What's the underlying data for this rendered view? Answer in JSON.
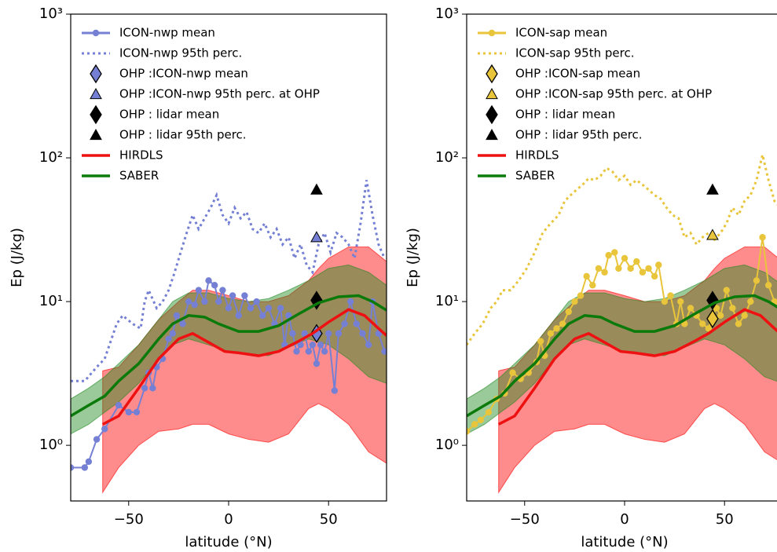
{
  "chart_data": [
    {
      "type": "line",
      "xlabel": "latitude (°N)",
      "ylabel": "Ep (J/kg)",
      "yscale": "log",
      "legend": "upper left",
      "xlim": [
        -79,
        79
      ],
      "ylim": [
        0.41,
        1000
      ],
      "xticks": [
        {
          "value": -50,
          "label": "−50"
        },
        0,
        50
      ],
      "yticks": [
        {
          "value": 1,
          "label": "10⁰"
        },
        {
          "value": 10,
          "label": "10¹"
        },
        {
          "value": 100,
          "label": "10²"
        },
        {
          "value": 1000,
          "label": "10³"
        }
      ],
      "bands": [
        {
          "color": "#ff0000",
          "x": [
            -63,
            -55,
            -45,
            -35,
            -25,
            -18,
            -10,
            0,
            10,
            20,
            30,
            40,
            45,
            50,
            60,
            70,
            79
          ],
          "lower": [
            0.47,
            0.7,
            1,
            1.25,
            1.3,
            1.4,
            1.4,
            1.2,
            1.1,
            1.05,
            1.2,
            1.8,
            1.95,
            1.8,
            1.4,
            0.9,
            0.75
          ],
          "upper": [
            3.3,
            3.5,
            5,
            7.5,
            10,
            12,
            12,
            11,
            10,
            10,
            11,
            14,
            17,
            20,
            24,
            24,
            19
          ]
        },
        {
          "color": "#1f8a1f",
          "x": [
            -79,
            -70,
            -62,
            -55,
            -45,
            -35,
            -28,
            -20,
            -10,
            0,
            10,
            20,
            30,
            40,
            50,
            60,
            70,
            79
          ],
          "lower": [
            1.2,
            1.4,
            1.7,
            2,
            2.7,
            4,
            5,
            5.5,
            5,
            4.5,
            4.3,
            4.2,
            4.8,
            5.5,
            5,
            4,
            3,
            2.7
          ],
          "upper": [
            2.1,
            2.5,
            3,
            3.7,
            5,
            7.5,
            10,
            11.5,
            11.5,
            10.5,
            10,
            10.5,
            12,
            14,
            17,
            18,
            16,
            13
          ]
        }
      ],
      "series": [
        {
          "name": "ICON-nwp mean",
          "color": "#7580d4",
          "style": "solid-markers",
          "x": [
            -79,
            -72,
            -70,
            -66,
            -62,
            -55,
            -50,
            -46,
            -42,
            -40,
            -38,
            -36,
            -33,
            -30,
            -28,
            -26,
            -23,
            -20,
            -17,
            -15,
            -12,
            -10,
            -7,
            -5,
            -3,
            0,
            2,
            5,
            8,
            11,
            14,
            17,
            20,
            23,
            26,
            28,
            30,
            32,
            34,
            36,
            38,
            40,
            42,
            44,
            46,
            48,
            50,
            53,
            55,
            58,
            61,
            64,
            67,
            70,
            72,
            75,
            78
          ],
          "values": [
            0.7,
            0.7,
            0.77,
            1.1,
            1.3,
            1.9,
            1.7,
            1.7,
            2.5,
            3.2,
            2.5,
            3.5,
            4,
            5.5,
            6,
            8,
            7,
            10,
            9.5,
            12,
            10,
            14,
            13,
            10,
            12,
            9,
            11,
            8,
            11,
            9,
            10,
            8,
            9,
            7,
            9,
            5,
            8,
            6,
            4.5,
            5,
            6,
            4.5,
            5,
            3.7,
            5,
            4.5,
            6,
            2.4,
            6,
            7,
            10,
            7,
            6,
            5,
            10,
            6,
            4.5
          ]
        },
        {
          "name": "ICON-nwp 95th perc.",
          "color": "#7580d4",
          "style": "dotted",
          "x": [
            -79,
            -72,
            -66,
            -62,
            -56,
            -53,
            -48,
            -44,
            -42,
            -40,
            -36,
            -33,
            -30,
            -27,
            -24,
            -21,
            -18,
            -15,
            -12,
            -9,
            -6,
            -3,
            0,
            3,
            6,
            9,
            12,
            15,
            18,
            21,
            24,
            27,
            30,
            33,
            36,
            39,
            42,
            45,
            48,
            51,
            54,
            57,
            60,
            63,
            66,
            69,
            72,
            75,
            78
          ],
          "values": [
            2.8,
            2.8,
            3.5,
            4,
            7,
            8,
            7,
            6.5,
            10,
            12,
            9,
            10,
            12,
            16,
            22,
            30,
            40,
            32,
            38,
            45,
            55,
            40,
            35,
            45,
            38,
            42,
            32,
            30,
            35,
            28,
            32,
            25,
            28,
            20,
            25,
            18,
            16,
            25,
            30,
            22,
            30,
            28,
            25,
            20,
            35,
            70,
            40,
            25,
            20
          ]
        },
        {
          "name": "OHP :ICON-nwp mean",
          "color": "#7580d4",
          "style": "diamond",
          "x": [
            44
          ],
          "values": [
            6
          ]
        },
        {
          "name": "OHP :ICON-nwp 95th perc. at OHP",
          "color": "#7580d4",
          "style": "triangle",
          "x": [
            44
          ],
          "values": [
            28
          ]
        },
        {
          "name": "OHP : lidar mean",
          "color": "#000000",
          "style": "diamond",
          "x": [
            44
          ],
          "values": [
            10.2
          ]
        },
        {
          "name": "OHP : lidar 95th perc.",
          "color": "#000000",
          "style": "triangle",
          "x": [
            44
          ],
          "values": [
            60
          ]
        },
        {
          "name": "HIRDLS",
          "color": "#ee1111",
          "style": "solid",
          "x": [
            -63,
            -55,
            -45,
            -35,
            -25,
            -18,
            -10,
            -2,
            5,
            15,
            25,
            35,
            42,
            50,
            60,
            68,
            75,
            79
          ],
          "values": [
            1.4,
            1.6,
            2.5,
            4,
            5.5,
            6,
            5.2,
            4.5,
            4.4,
            4.2,
            4.5,
            5.3,
            6,
            7.2,
            8.8,
            8,
            6.5,
            5.8
          ]
        },
        {
          "name": "SABER",
          "color": "#0b7a0b",
          "style": "solid",
          "x": [
            -79,
            -70,
            -62,
            -55,
            -45,
            -35,
            -28,
            -20,
            -12,
            -5,
            5,
            15,
            25,
            35,
            45,
            55,
            65,
            72,
            79
          ],
          "values": [
            1.6,
            1.9,
            2.2,
            2.8,
            3.7,
            5.5,
            7,
            8,
            7.8,
            7,
            6.2,
            6.2,
            6.8,
            8.2,
            9.8,
            10.8,
            11,
            10,
            8.7
          ]
        }
      ]
    },
    {
      "type": "line",
      "xlabel": "latitude (°N)",
      "ylabel": "Ep (J/kg)",
      "yscale": "log",
      "legend": "upper left",
      "xlim": [
        -79,
        79
      ],
      "ylim": [
        0.41,
        1000
      ],
      "xticks": [
        {
          "value": -50,
          "label": "−50"
        },
        0,
        50
      ],
      "yticks": [
        {
          "value": 1,
          "label": "10⁰"
        },
        {
          "value": 10,
          "label": "10¹"
        },
        {
          "value": 100,
          "label": "10²"
        },
        {
          "value": 1000,
          "label": "10³"
        }
      ],
      "bands": [
        {
          "color": "#ff0000",
          "x": [
            -63,
            -55,
            -45,
            -35,
            -25,
            -18,
            -10,
            0,
            10,
            20,
            30,
            40,
            45,
            50,
            60,
            70,
            79
          ],
          "lower": [
            0.47,
            0.7,
            1,
            1.25,
            1.3,
            1.4,
            1.4,
            1.2,
            1.1,
            1.05,
            1.2,
            1.8,
            1.95,
            1.8,
            1.4,
            0.9,
            0.75
          ],
          "upper": [
            3.3,
            3.5,
            5,
            7.5,
            10,
            12,
            12,
            11,
            10,
            10,
            11,
            14,
            17,
            20,
            24,
            24,
            19
          ]
        },
        {
          "color": "#1f8a1f",
          "x": [
            -79,
            -70,
            -62,
            -55,
            -45,
            -35,
            -28,
            -20,
            -10,
            0,
            10,
            20,
            30,
            40,
            50,
            60,
            70,
            79
          ],
          "lower": [
            1.2,
            1.4,
            1.7,
            2,
            2.7,
            4,
            5,
            5.5,
            5,
            4.5,
            4.3,
            4.2,
            4.8,
            5.5,
            5,
            4,
            3,
            2.7
          ],
          "upper": [
            2.1,
            2.5,
            3,
            3.7,
            5,
            7.5,
            10,
            11.5,
            11.5,
            10.5,
            10,
            10.5,
            12,
            14,
            17,
            18,
            16,
            13
          ]
        }
      ],
      "series": [
        {
          "name": "ICON-sap mean",
          "color": "#e8c53a",
          "style": "solid-markers",
          "x": [
            -79,
            -75,
            -72,
            -68,
            -64,
            -60,
            -56,
            -52,
            -48,
            -44,
            -42,
            -40,
            -37,
            -34,
            -31,
            -28,
            -25,
            -22,
            -19,
            -16,
            -13,
            -10,
            -8,
            -5,
            -3,
            0,
            3,
            6,
            9,
            12,
            15,
            17,
            20,
            23,
            26,
            28,
            30,
            33,
            36,
            39,
            42,
            44,
            46,
            48,
            51,
            54,
            57,
            60,
            63,
            66,
            69,
            72,
            75,
            78
          ],
          "values": [
            1.25,
            1.4,
            1.5,
            1.7,
            2.1,
            2.3,
            3.2,
            2.9,
            3.2,
            3.8,
            5.3,
            4.2,
            6,
            6.5,
            7,
            8.5,
            10,
            11,
            15,
            13,
            17,
            16,
            21,
            22,
            17,
            20,
            17,
            19,
            16,
            17,
            15,
            18,
            10,
            11,
            7,
            10,
            7,
            9,
            8,
            7,
            6.5,
            8,
            9,
            8,
            12,
            9,
            7,
            8,
            10,
            14,
            28,
            13,
            10,
            9
          ]
        },
        {
          "name": "ICON-sap 95th perc.",
          "color": "#e8c53a",
          "style": "dotted",
          "x": [
            -79,
            -75,
            -71,
            -67,
            -64,
            -61,
            -57,
            -53,
            -49,
            -45,
            -41,
            -37,
            -33,
            -30,
            -27,
            -24,
            -21,
            -18,
            -15,
            -12,
            -9,
            -6,
            -3,
            0,
            3,
            6,
            9,
            12,
            15,
            18,
            21,
            24,
            27,
            30,
            33,
            36,
            39,
            42,
            45,
            48,
            51,
            54,
            57,
            60,
            63,
            66,
            69,
            72,
            75,
            78
          ],
          "values": [
            5,
            6,
            7,
            9,
            10,
            12,
            12,
            14,
            17,
            22,
            30,
            35,
            40,
            50,
            55,
            60,
            65,
            72,
            70,
            75,
            85,
            80,
            70,
            75,
            65,
            70,
            65,
            60,
            55,
            52,
            45,
            40,
            38,
            28,
            30,
            25,
            28,
            30,
            27,
            30,
            35,
            45,
            40,
            50,
            55,
            70,
            105,
            70,
            50,
            45
          ]
        },
        {
          "name": "OHP :ICON-sap mean",
          "color": "#e8c53a",
          "style": "diamond",
          "x": [
            44
          ],
          "values": [
            7.6
          ]
        },
        {
          "name": "OHP :ICON-sap 95th perc. at OHP",
          "color": "#e8c53a",
          "style": "triangle",
          "x": [
            44
          ],
          "values": [
            29
          ]
        },
        {
          "name": "OHP : lidar mean",
          "color": "#000000",
          "style": "diamond",
          "x": [
            44
          ],
          "values": [
            10.2
          ]
        },
        {
          "name": "OHP : lidar 95th perc.",
          "color": "#000000",
          "style": "triangle",
          "x": [
            44
          ],
          "values": [
            60
          ]
        },
        {
          "name": "HIRDLS",
          "color": "#ee1111",
          "style": "solid",
          "x": [
            -63,
            -55,
            -45,
            -35,
            -25,
            -18,
            -10,
            -2,
            5,
            15,
            25,
            35,
            42,
            50,
            60,
            68,
            75,
            79
          ],
          "values": [
            1.4,
            1.6,
            2.5,
            4,
            5.5,
            6,
            5.2,
            4.5,
            4.4,
            4.2,
            4.5,
            5.3,
            6,
            7.2,
            8.8,
            8,
            6.5,
            5.8
          ]
        },
        {
          "name": "SABER",
          "color": "#0b7a0b",
          "style": "solid",
          "x": [
            -79,
            -70,
            -62,
            -55,
            -45,
            -35,
            -28,
            -20,
            -12,
            -5,
            5,
            15,
            25,
            35,
            45,
            55,
            65,
            72,
            79
          ],
          "values": [
            1.6,
            1.9,
            2.2,
            2.8,
            3.7,
            5.5,
            7,
            8,
            7.8,
            7,
            6.2,
            6.2,
            6.8,
            8.2,
            9.8,
            10.8,
            11,
            10,
            8.7
          ]
        }
      ]
    }
  ]
}
